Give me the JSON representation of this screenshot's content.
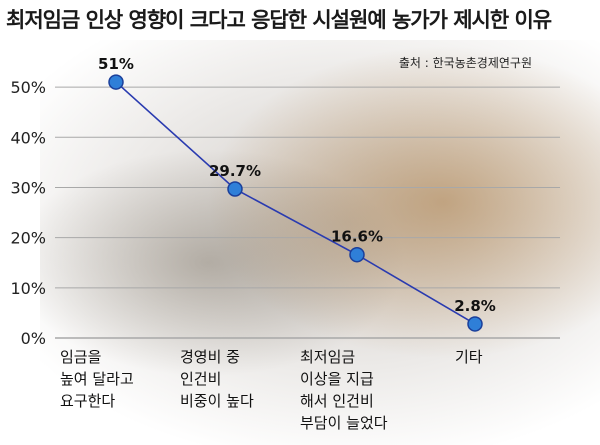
{
  "title": "최저임금 인상 영향이 크다고 응답한 시설원예 농가가 제시한 이유",
  "source": "출처 : 한국농촌경제연구원",
  "colors": {
    "line": "#2a3bb0",
    "marker": "#2f7fd8",
    "marker_edge": "#1b3f9a",
    "grid": "#a8a8a8"
  },
  "chart_data": {
    "type": "line",
    "title": "최저임금 인상 영향이 크다고 응답한 시설원예 농가가 제시한 이유",
    "categories": [
      [
        "임금을",
        "높여 달라고",
        "요구한다"
      ],
      [
        "경영비 중",
        "인건비",
        "비중이 높다"
      ],
      [
        "최저임금",
        "이상을 지급",
        "해서 인건비",
        "부담이 늘었다"
      ],
      [
        "기타"
      ]
    ],
    "values": [
      51,
      29.7,
      16.6,
      2.8
    ],
    "data_labels": [
      "51%",
      "29.7%",
      "16.6%",
      "2.8%"
    ],
    "yticks": [
      "0%",
      "10%",
      "20%",
      "30%",
      "40%",
      "50%"
    ],
    "ylim": [
      0,
      55
    ],
    "grid": true
  }
}
